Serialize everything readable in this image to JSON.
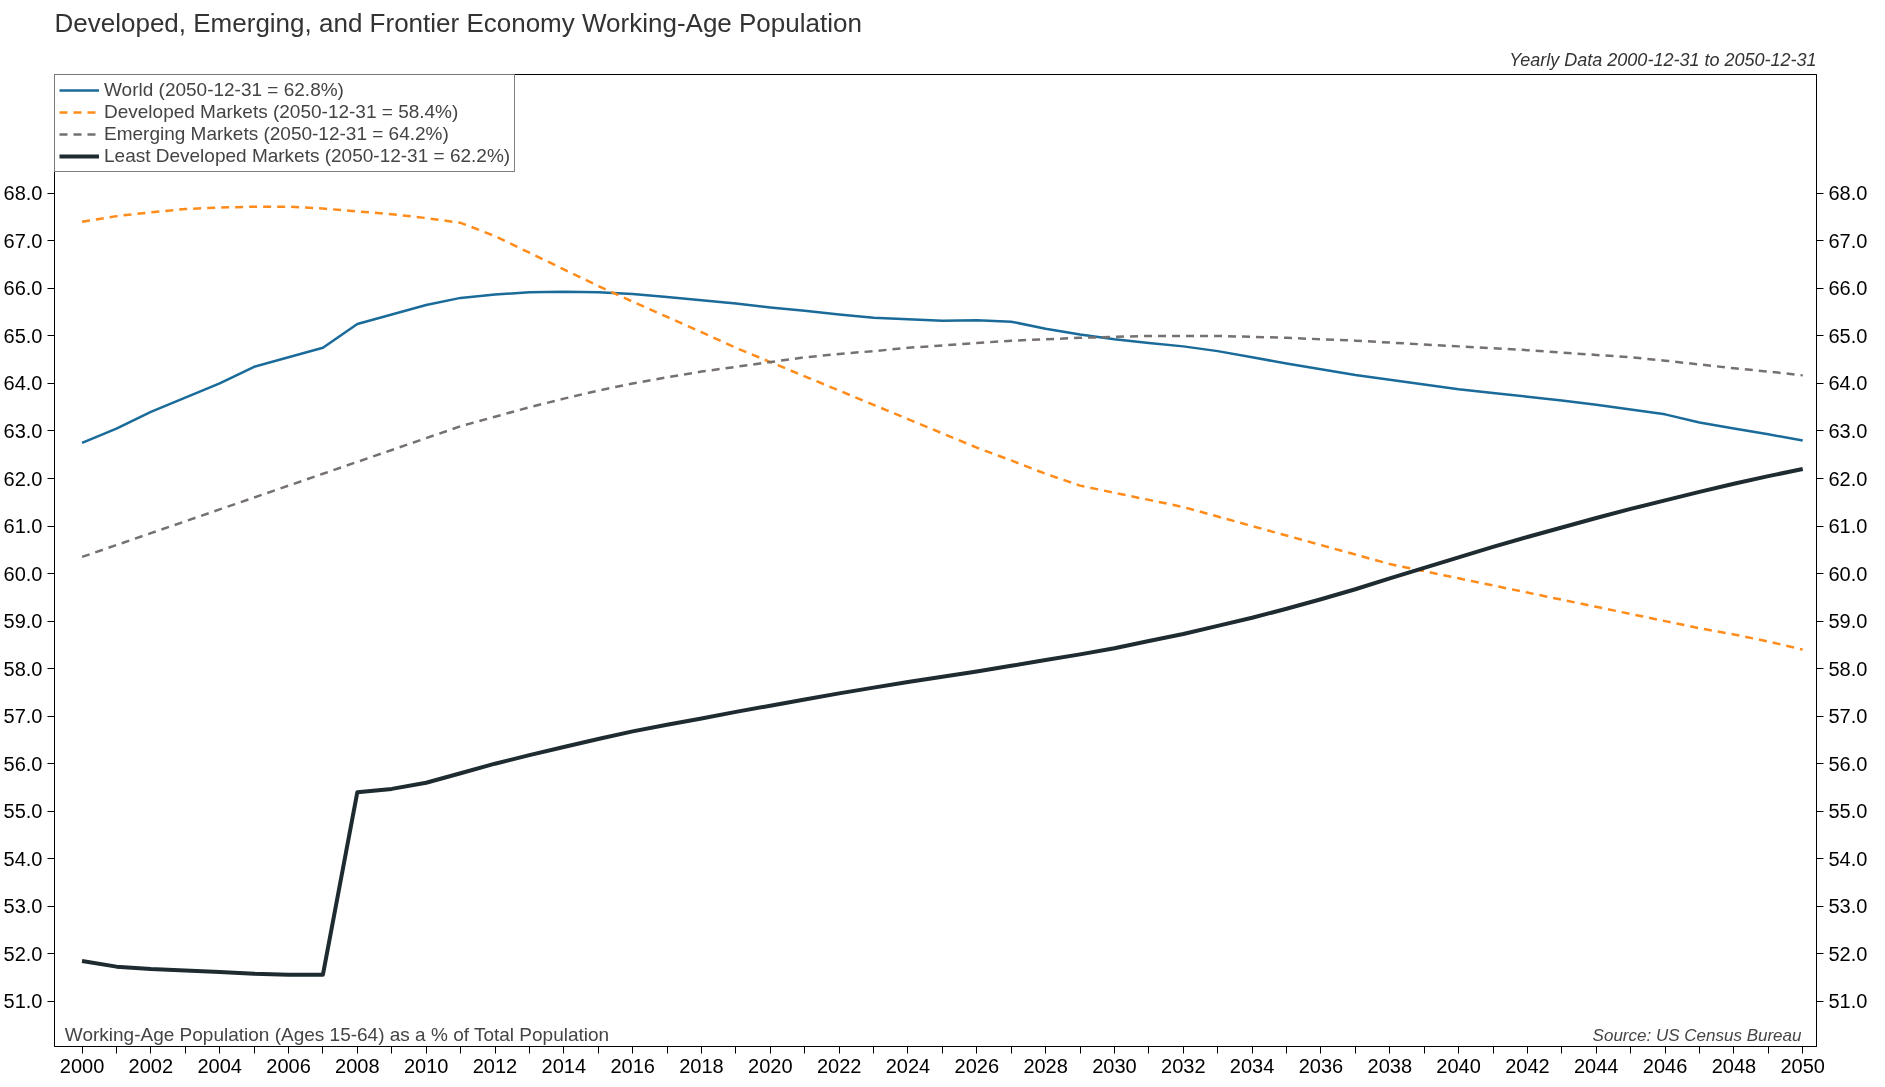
{
  "chart_data": {
    "type": "line",
    "title": "Developed, Emerging, and Frontier Economy Working-Age Population",
    "subtitle": "Yearly Data 2000-12-31 to 2050-12-31",
    "annotations": [
      "Working-Age Population (Ages 15-64) as a % of Total Population",
      "Source:  US Census Bureau"
    ],
    "x": [
      2000,
      2001,
      2002,
      2003,
      2004,
      2005,
      2006,
      2007,
      2008,
      2009,
      2010,
      2011,
      2012,
      2013,
      2014,
      2015,
      2016,
      2017,
      2018,
      2019,
      2020,
      2021,
      2022,
      2023,
      2024,
      2025,
      2026,
      2027,
      2028,
      2029,
      2030,
      2031,
      2032,
      2033,
      2034,
      2035,
      2036,
      2037,
      2038,
      2039,
      2040,
      2041,
      2042,
      2043,
      2044,
      2045,
      2046,
      2047,
      2048,
      2049,
      2050
    ],
    "series": [
      {
        "name": "World (2050-12-31 = 62.8%)",
        "color": "#1a6b9a",
        "line_style": "solid",
        "values": [
          62.75,
          63.05,
          63.4,
          63.7,
          64.0,
          64.35,
          64.55,
          64.75,
          65.25,
          65.45,
          65.65,
          65.8,
          65.87,
          65.92,
          65.93,
          65.92,
          65.88,
          65.82,
          65.75,
          65.68,
          65.6,
          65.53,
          65.45,
          65.38,
          65.35,
          65.32,
          65.33,
          65.3,
          65.15,
          65.03,
          64.93,
          64.85,
          64.78,
          64.68,
          64.55,
          64.42,
          64.3,
          64.18,
          64.08,
          63.98,
          63.88,
          63.8,
          63.72,
          63.64,
          63.55,
          63.45,
          63.35,
          63.18,
          63.05,
          62.93,
          62.8
        ]
      },
      {
        "name": "Developed Markets (2050-12-31 = 58.4%)",
        "color": "#ff8c1a",
        "line_style": "dashed",
        "values": [
          67.4,
          67.52,
          67.6,
          67.67,
          67.7,
          67.72,
          67.72,
          67.68,
          67.62,
          67.56,
          67.48,
          67.38,
          67.1,
          66.75,
          66.4,
          66.05,
          65.72,
          65.4,
          65.08,
          64.75,
          64.45,
          64.15,
          63.85,
          63.55,
          63.25,
          62.95,
          62.65,
          62.38,
          62.1,
          61.85,
          61.7,
          61.55,
          61.4,
          61.2,
          61.0,
          60.8,
          60.6,
          60.4,
          60.2,
          60.05,
          59.9,
          59.75,
          59.6,
          59.45,
          59.3,
          59.15,
          59.0,
          58.85,
          58.72,
          58.57,
          58.4
        ]
      },
      {
        "name": "Emerging Markets (2050-12-31 = 64.2%)",
        "color": "#767171",
        "line_style": "dashed",
        "values": [
          60.35,
          60.6,
          60.85,
          61.1,
          61.35,
          61.6,
          61.85,
          62.1,
          62.35,
          62.6,
          62.85,
          63.1,
          63.3,
          63.5,
          63.68,
          63.85,
          64.0,
          64.13,
          64.25,
          64.35,
          64.45,
          64.55,
          64.62,
          64.68,
          64.75,
          64.8,
          64.85,
          64.9,
          64.93,
          64.96,
          64.98,
          65.0,
          65.0,
          65.0,
          64.98,
          64.96,
          64.93,
          64.9,
          64.86,
          64.82,
          64.78,
          64.74,
          64.7,
          64.65,
          64.6,
          64.55,
          64.48,
          64.4,
          64.32,
          64.25,
          64.17
        ]
      },
      {
        "name": "Least Developed Markets (2050-12-31 = 62.2%)",
        "color": "#1e2b30",
        "line_style": "solid",
        "values": [
          51.85,
          51.73,
          51.68,
          51.65,
          51.62,
          51.58,
          51.56,
          51.56,
          55.4,
          55.47,
          55.6,
          55.8,
          56.0,
          56.18,
          56.35,
          56.52,
          56.68,
          56.82,
          56.95,
          57.09,
          57.22,
          57.35,
          57.48,
          57.6,
          57.72,
          57.83,
          57.94,
          58.06,
          58.18,
          58.3,
          58.43,
          58.58,
          58.73,
          58.9,
          59.07,
          59.26,
          59.46,
          59.67,
          59.9,
          60.12,
          60.34,
          60.56,
          60.77,
          60.97,
          61.17,
          61.36,
          61.54,
          61.72,
          61.89,
          62.05,
          62.2
        ]
      }
    ],
    "xlim": [
      1999.2,
      2050.4
    ],
    "xticks": [
      2000,
      {
        "value": 2001,
        "label": null
      },
      2002,
      {
        "value": 2003,
        "label": null
      },
      2004,
      {
        "value": 2005,
        "label": null
      },
      2006,
      {
        "value": 2007,
        "label": null
      },
      2008,
      {
        "value": 2009,
        "label": null
      },
      2010,
      {
        "value": 2011,
        "label": null
      },
      2012,
      {
        "value": 2013,
        "label": null
      },
      2014,
      {
        "value": 2015,
        "label": null
      },
      2016,
      {
        "value": 2017,
        "label": null
      },
      2018,
      {
        "value": 2019,
        "label": null
      },
      2020,
      {
        "value": 2021,
        "label": null
      },
      2022,
      {
        "value": 2023,
        "label": null
      },
      2024,
      {
        "value": 2025,
        "label": null
      },
      2026,
      {
        "value": 2027,
        "label": null
      },
      2028,
      {
        "value": 2029,
        "label": null
      },
      2030,
      {
        "value": 2031,
        "label": null
      },
      2032,
      {
        "value": 2033,
        "label": null
      },
      2034,
      {
        "value": 2035,
        "label": null
      },
      2036,
      {
        "value": 2037,
        "label": null
      },
      2038,
      {
        "value": 2039,
        "label": null
      },
      2040,
      {
        "value": 2041,
        "label": null
      },
      2042,
      {
        "value": 2043,
        "label": null
      },
      2044,
      {
        "value": 2045,
        "label": null
      },
      2046,
      {
        "value": 2047,
        "label": null
      },
      2048,
      {
        "value": 2049,
        "label": null
      },
      2050
    ],
    "ylim": [
      50.05,
      70.5
    ],
    "yticks": [
      {
        "value": 51,
        "label": "51.0"
      },
      {
        "value": 52,
        "label": "52.0"
      },
      {
        "value": 53,
        "label": "53.0"
      },
      {
        "value": 54,
        "label": "54.0"
      },
      {
        "value": 55,
        "label": "55.0"
      },
      {
        "value": 56,
        "label": "56.0"
      },
      {
        "value": 57,
        "label": "57.0"
      },
      {
        "value": 58,
        "label": "58.0"
      },
      {
        "value": 59,
        "label": "59.0"
      },
      {
        "value": 60,
        "label": "60.0"
      },
      {
        "value": 61,
        "label": "61.0"
      },
      {
        "value": 62,
        "label": "62.0"
      },
      {
        "value": 63,
        "label": "63.0"
      },
      {
        "value": 64,
        "label": "64.0"
      },
      {
        "value": 65,
        "label": "65.0"
      },
      {
        "value": 66,
        "label": "66.0"
      },
      {
        "value": 67,
        "label": "67.0"
      },
      {
        "value": 68,
        "label": "68.0"
      }
    ],
    "y2lim": [
      50.05,
      70.5
    ],
    "y2ticks": [
      {
        "value": 51,
        "label": "51.0"
      },
      {
        "value": 52,
        "label": "52.0"
      },
      {
        "value": 53,
        "label": "53.0"
      },
      {
        "value": 54,
        "label": "54.0"
      },
      {
        "value": 55,
        "label": "55.0"
      },
      {
        "value": 56,
        "label": "56.0"
      },
      {
        "value": 57,
        "label": "57.0"
      },
      {
        "value": 58,
        "label": "58.0"
      },
      {
        "value": 59,
        "label": "59.0"
      },
      {
        "value": 60,
        "label": "60.0"
      },
      {
        "value": 61,
        "label": "61.0"
      },
      {
        "value": 62,
        "label": "62.0"
      },
      {
        "value": 63,
        "label": "63.0"
      },
      {
        "value": 64,
        "label": "64.0"
      },
      {
        "value": 65,
        "label": "65.0"
      },
      {
        "value": 66,
        "label": "66.0"
      },
      {
        "value": 67,
        "label": "67.0"
      },
      {
        "value": 68,
        "label": "68.0"
      }
    ],
    "grid": false,
    "legend": "top left",
    "marker": "none"
  }
}
